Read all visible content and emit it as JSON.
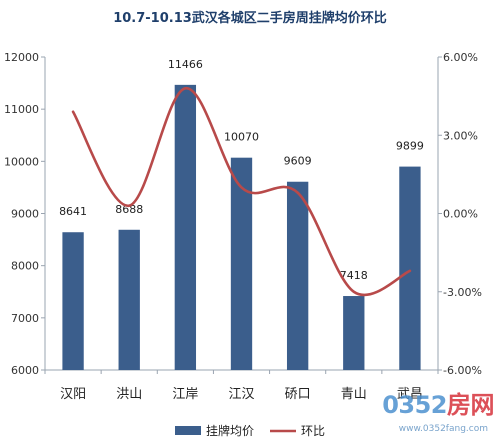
{
  "chart_data": {
    "type": "bar",
    "title": "10.7-10.13武汉各城区二手房周挂牌均价环比",
    "categories": [
      "汉阳",
      "洪山",
      "江岸",
      "江汉",
      "硚口",
      "青山",
      "武昌"
    ],
    "series": [
      {
        "name": "挂牌均价",
        "type": "bar",
        "axis": "left",
        "values": [
          8641,
          8688,
          11466,
          10070,
          9609,
          7418,
          9899
        ],
        "color": "#3b5e8c"
      },
      {
        "name": "环比",
        "type": "line",
        "axis": "right",
        "values": [
          3.9,
          0.3,
          4.8,
          1.0,
          0.8,
          -3.0,
          -2.2
        ],
        "color": "#b84a4a"
      }
    ],
    "y_left": {
      "min": 6000,
      "max": 12000,
      "step": 1000,
      "ticks": [
        "6000",
        "7000",
        "8000",
        "9000",
        "10000",
        "11000",
        "12000"
      ]
    },
    "y_right": {
      "min": -6,
      "max": 6,
      "step": 3,
      "ticks": [
        "-6.00%",
        "-3.00%",
        "0.00%",
        "3.00%",
        "6.00%"
      ]
    },
    "legend": {
      "position": "bottom",
      "items": [
        "挂牌均价",
        "环比"
      ]
    },
    "grid": false
  },
  "watermark": {
    "main_a": "0352",
    "main_b": "房网",
    "sub": "www.0352fang.com"
  }
}
